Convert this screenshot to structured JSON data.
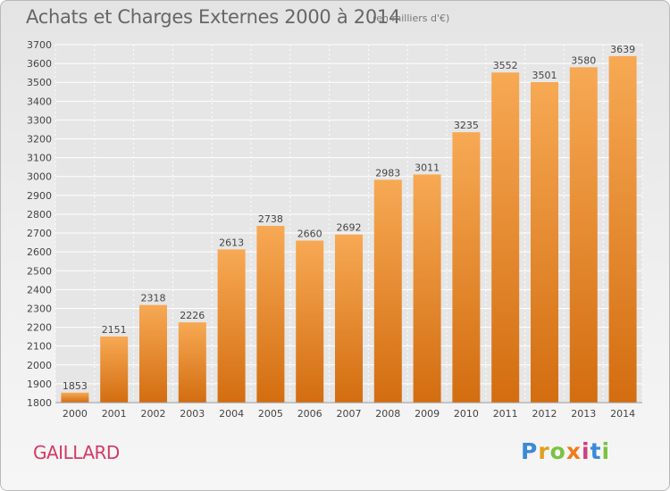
{
  "header": {
    "title": "Achats et Charges Externes 2000 à 2014",
    "unit": "(en milliers d'€)"
  },
  "footer": {
    "place": "GAILLARD",
    "brand": "Proxiti",
    "brand_letters": [
      "P",
      "r",
      "o",
      "x",
      "i",
      "t",
      "i"
    ],
    "brand_colors": [
      "#3a8ad6",
      "#e0a020",
      "#7cc242",
      "#f07a1a",
      "#d23e7f",
      "#3a8ad6",
      "#7cc242"
    ]
  },
  "colors": {
    "bar_light": "#f7a954",
    "bar_dark": "#d36d10",
    "grid": "#ffffff",
    "text": "#444444"
  },
  "chart_data": {
    "type": "bar",
    "title": "Achats et Charges Externes 2000 à 2014",
    "categories": [
      "2000",
      "2001",
      "2002",
      "2003",
      "2004",
      "2005",
      "2006",
      "2007",
      "2008",
      "2009",
      "2010",
      "2011",
      "2012",
      "2013",
      "2014"
    ],
    "values": [
      1853,
      2151,
      2318,
      2226,
      2613,
      2738,
      2660,
      2692,
      2983,
      3011,
      3235,
      3552,
      3501,
      3580,
      3639
    ],
    "ylim": [
      1800,
      3700
    ],
    "yticks": [
      1800,
      1900,
      2000,
      2100,
      2200,
      2300,
      2400,
      2500,
      2600,
      2700,
      2800,
      2900,
      3000,
      3100,
      3200,
      3300,
      3400,
      3500,
      3600,
      3700
    ],
    "grid": true,
    "xlabel": "",
    "ylabel": ""
  }
}
